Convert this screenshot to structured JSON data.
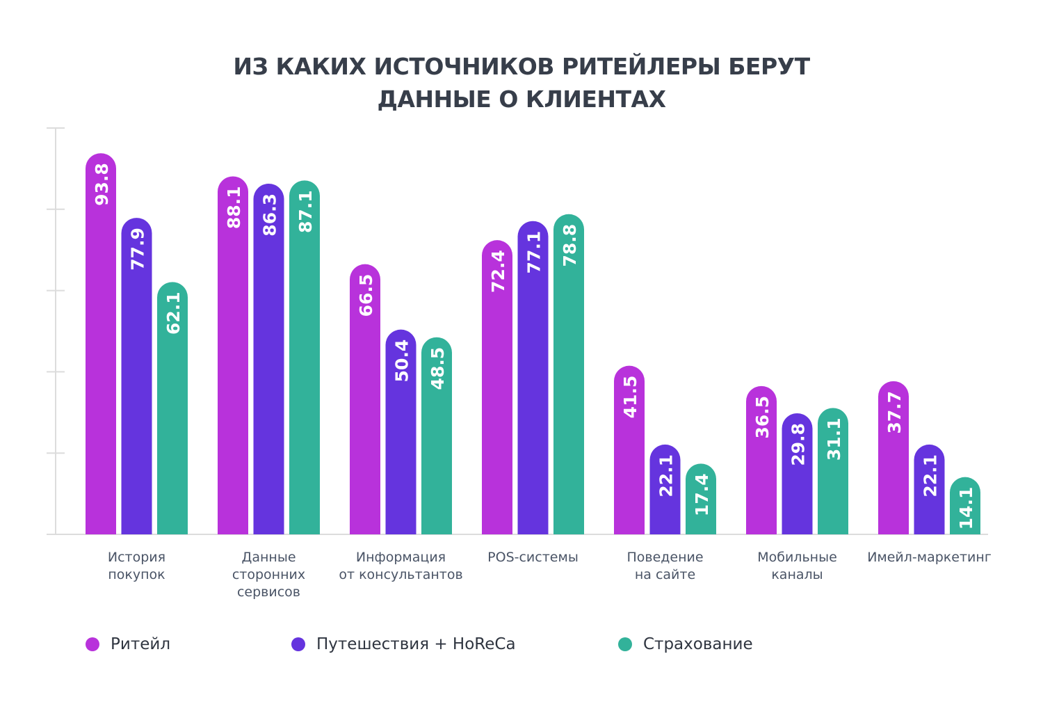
{
  "title_lines": [
    "ИЗ КАКИХ ИСТОЧНИКОВ РИТЕЙЛЕРЫ БЕРУТ",
    "ДАННЫЕ О КЛИЕНТАХ"
  ],
  "chart_data": {
    "type": "bar",
    "title": "ИЗ КАКИХ ИСТОЧНИКОВ РИТЕЙЛЕРЫ БЕРУТ ДАННЫЕ О КЛИЕНТАХ",
    "xlabel": "",
    "ylabel": "",
    "ylim": [
      0,
      100
    ],
    "yticks": [
      0,
      20,
      40,
      60,
      80,
      100
    ],
    "ytick_labels_shown": false,
    "grid": false,
    "legend_position": "bottom",
    "data_labels": "inside-top-rotated",
    "categories": [
      "История\nпокупок",
      "Данные\nсторонних\nсервисов",
      "Информация\nот консультантов",
      "POS-системы",
      "Поведение\nна сайте",
      "Мобильные\nканалы",
      "Имейл-маркетинг"
    ],
    "series": [
      {
        "name": "Ритейл",
        "color": "#B832DB",
        "values": [
          93.8,
          88.1,
          66.5,
          72.4,
          41.5,
          36.5,
          37.7
        ]
      },
      {
        "name": "Путешествия + HoReCa",
        "color": "#6534DE",
        "values": [
          77.9,
          86.3,
          50.4,
          77.1,
          22.1,
          29.8,
          22.1
        ]
      },
      {
        "name": "Страхование",
        "color": "#32B29A",
        "values": [
          62.1,
          87.1,
          48.5,
          78.8,
          17.4,
          31.1,
          14.1
        ]
      }
    ]
  }
}
